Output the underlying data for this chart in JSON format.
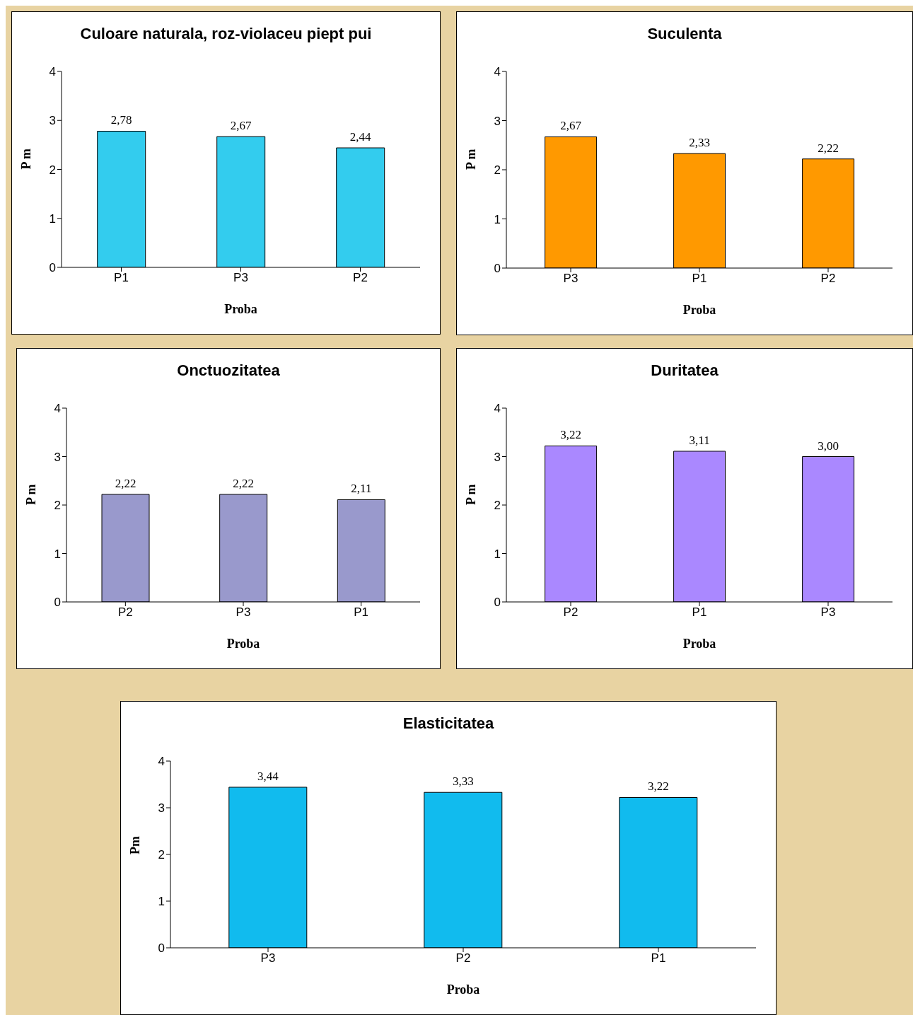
{
  "chart_data": [
    {
      "type": "bar",
      "title": "Culoare naturala, roz-violaceu piept pui",
      "xlabel": "Proba",
      "ylabel": "P m",
      "categories": [
        "P1",
        "P3",
        "P2"
      ],
      "values": [
        2.78,
        2.67,
        2.44
      ],
      "value_labels": [
        "2,78",
        "2,67",
        "2,44"
      ],
      "color": "#33ccee",
      "ylim": [
        0,
        4
      ],
      "yticks": [
        0,
        1,
        2,
        3,
        4
      ],
      "legend": false
    },
    {
      "type": "bar",
      "title": "Suculenta",
      "xlabel": "Proba",
      "ylabel": "P m",
      "categories": [
        "P3",
        "P1",
        "P2"
      ],
      "values": [
        2.67,
        2.33,
        2.22
      ],
      "value_labels": [
        "2,67",
        "2,33",
        "2,22"
      ],
      "color": "#ff9900",
      "ylim": [
        0,
        4
      ],
      "yticks": [
        0,
        1,
        2,
        3,
        4
      ],
      "legend": false
    },
    {
      "type": "bar",
      "title": "Onctuozitatea",
      "xlabel": "Proba",
      "ylabel": "P m",
      "categories": [
        "P2",
        "P3",
        "P1"
      ],
      "values": [
        2.22,
        2.22,
        2.11
      ],
      "value_labels": [
        "2,22",
        "2,22",
        "2,11"
      ],
      "color": "#9999cc",
      "ylim": [
        0,
        4
      ],
      "yticks": [
        0,
        1,
        2,
        3,
        4
      ],
      "legend": false
    },
    {
      "type": "bar",
      "title": "Duritatea",
      "xlabel": "Proba",
      "ylabel": "P m",
      "categories": [
        "P2",
        "P1",
        "P3"
      ],
      "values": [
        3.22,
        3.11,
        3.0
      ],
      "value_labels": [
        "3,22",
        "3,11",
        "3,00"
      ],
      "color": "#aa88ff",
      "ylim": [
        0,
        4
      ],
      "yticks": [
        0,
        1,
        2,
        3,
        4
      ],
      "legend": false
    },
    {
      "type": "bar",
      "title": "Elasticitatea",
      "xlabel": "Proba",
      "ylabel": "Pm",
      "categories": [
        "P3",
        "P2",
        "P1"
      ],
      "values": [
        3.44,
        3.33,
        3.22
      ],
      "value_labels": [
        "3,44",
        "3,33",
        "3,22"
      ],
      "color": "#11bbee",
      "ylim": [
        0,
        4
      ],
      "yticks": [
        0,
        1,
        2,
        3,
        4
      ],
      "legend": false
    }
  ]
}
